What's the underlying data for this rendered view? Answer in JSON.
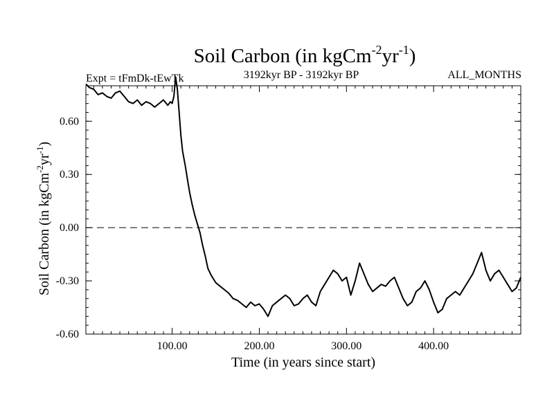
{
  "chart_data": {
    "type": "line",
    "title": {
      "main": "Soil Carbon (in kgCm",
      "sup1": "-2",
      "mid": "yr",
      "sup2": "-1",
      "end": ")"
    },
    "subtitle_left": "Expt = tFmDk-tEwTk",
    "subtitle_center": "3192kyr BP - 3192kyr BP",
    "subtitle_right": "ALL_MONTHS",
    "xlabel": "Time (in years since start)",
    "ylabel": {
      "main": "Soil Carbon (in kgCm",
      "sup1": "-2",
      "mid": "yr",
      "sup2": "-1",
      "end": ")"
    },
    "xlim": [
      1,
      500
    ],
    "ylim": [
      -0.6,
      0.8
    ],
    "xticks": [
      100,
      200,
      300,
      400
    ],
    "xtick_labels": [
      "100.00",
      "200.00",
      "300.00",
      "400.00"
    ],
    "yticks": [
      -0.6,
      -0.3,
      0.0,
      0.3,
      0.6
    ],
    "ytick_labels": [
      "-0.60",
      "-0.30",
      "0.00",
      "0.30",
      "0.60"
    ],
    "reference_line": {
      "y": 0.0,
      "style": "dashed"
    },
    "series": [
      {
        "name": "Soil Carbon",
        "x": [
          1,
          5,
          10,
          15,
          20,
          25,
          30,
          35,
          40,
          45,
          50,
          55,
          60,
          65,
          70,
          75,
          80,
          85,
          90,
          95,
          98,
          100,
          102,
          104,
          106,
          108,
          110,
          112,
          115,
          118,
          120,
          123,
          126,
          129,
          132,
          135,
          138,
          141,
          145,
          150,
          155,
          160,
          165,
          170,
          175,
          180,
          185,
          190,
          195,
          200,
          205,
          210,
          215,
          220,
          225,
          230,
          235,
          240,
          245,
          250,
          255,
          260,
          265,
          270,
          275,
          280,
          285,
          290,
          295,
          300,
          305,
          310,
          315,
          320,
          325,
          330,
          335,
          340,
          345,
          350,
          355,
          360,
          365,
          370,
          375,
          380,
          385,
          390,
          395,
          400,
          405,
          410,
          415,
          420,
          425,
          430,
          435,
          440,
          445,
          450,
          455,
          460,
          465,
          470,
          475,
          480,
          485,
          490,
          495,
          500
        ],
        "y": [
          0.81,
          0.79,
          0.78,
          0.75,
          0.76,
          0.74,
          0.73,
          0.76,
          0.77,
          0.74,
          0.71,
          0.7,
          0.72,
          0.69,
          0.71,
          0.7,
          0.68,
          0.7,
          0.72,
          0.69,
          0.71,
          0.7,
          0.74,
          0.85,
          0.78,
          0.65,
          0.52,
          0.43,
          0.35,
          0.26,
          0.2,
          0.13,
          0.07,
          0.02,
          -0.03,
          -0.1,
          -0.16,
          -0.23,
          -0.27,
          -0.31,
          -0.33,
          -0.35,
          -0.37,
          -0.4,
          -0.41,
          -0.43,
          -0.45,
          -0.42,
          -0.44,
          -0.43,
          -0.46,
          -0.5,
          -0.44,
          -0.42,
          -0.4,
          -0.38,
          -0.4,
          -0.44,
          -0.43,
          -0.4,
          -0.38,
          -0.42,
          -0.44,
          -0.36,
          -0.32,
          -0.28,
          -0.24,
          -0.26,
          -0.3,
          -0.28,
          -0.38,
          -0.3,
          -0.2,
          -0.26,
          -0.32,
          -0.36,
          -0.34,
          -0.32,
          -0.33,
          -0.3,
          -0.28,
          -0.34,
          -0.4,
          -0.44,
          -0.42,
          -0.36,
          -0.34,
          -0.3,
          -0.35,
          -0.42,
          -0.48,
          -0.46,
          -0.4,
          -0.38,
          -0.36,
          -0.38,
          -0.34,
          -0.3,
          -0.26,
          -0.2,
          -0.14,
          -0.24,
          -0.3,
          -0.26,
          -0.24,
          -0.28,
          -0.32,
          -0.36,
          -0.34,
          -0.28
        ]
      }
    ]
  }
}
